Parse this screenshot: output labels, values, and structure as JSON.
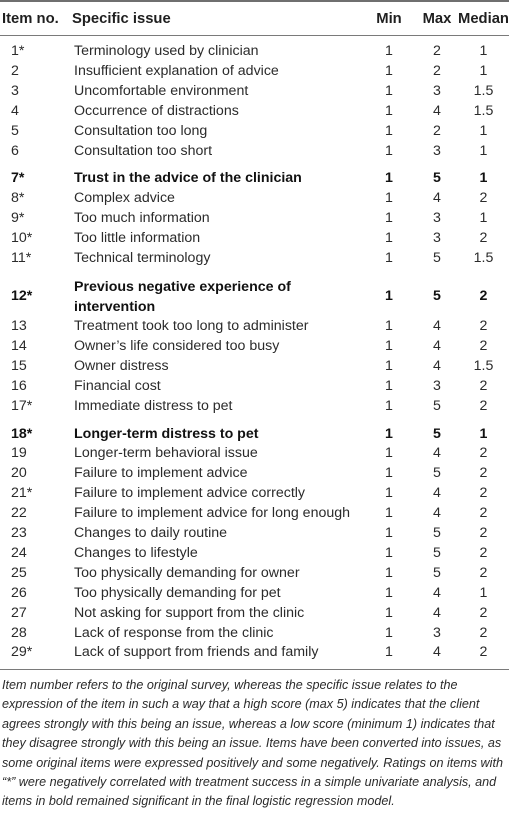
{
  "table": {
    "headers": {
      "item": "Item no.",
      "issue": "Specific issue",
      "min": "Min",
      "max": "Max",
      "median": "Median"
    },
    "rows": [
      {
        "item": "1*",
        "issue": "Terminology used by clinician",
        "min": "1",
        "max": "2",
        "median": "1",
        "bold": false
      },
      {
        "item": "2",
        "issue": "Insufficient explanation of advice",
        "min": "1",
        "max": "2",
        "median": "1",
        "bold": false
      },
      {
        "item": "3",
        "issue": "Uncomfortable environment",
        "min": "1",
        "max": "3",
        "median": "1.5",
        "bold": false
      },
      {
        "item": "4",
        "issue": "Occurrence of distractions",
        "min": "1",
        "max": "4",
        "median": "1.5",
        "bold": false
      },
      {
        "item": "5",
        "issue": "Consultation too long",
        "min": "1",
        "max": "2",
        "median": "1",
        "bold": false
      },
      {
        "item": "6",
        "issue": "Consultation too short",
        "min": "1",
        "max": "3",
        "median": "1",
        "bold": false
      },
      {
        "item": "7*",
        "issue": "Trust in the advice of the clinician",
        "min": "1",
        "max": "5",
        "median": "1",
        "bold": true
      },
      {
        "item": "8*",
        "issue": "Complex advice",
        "min": "1",
        "max": "4",
        "median": "2",
        "bold": false
      },
      {
        "item": "9*",
        "issue": "Too much information",
        "min": "1",
        "max": "3",
        "median": "1",
        "bold": false
      },
      {
        "item": "10*",
        "issue": "Too little information",
        "min": "1",
        "max": "3",
        "median": "2",
        "bold": false
      },
      {
        "item": "11*",
        "issue": "Technical terminology",
        "min": "1",
        "max": "5",
        "median": "1.5",
        "bold": false
      },
      {
        "item": "12*",
        "issue": "Previous negative experience of intervention",
        "min": "1",
        "max": "5",
        "median": "2",
        "bold": true
      },
      {
        "item": "13",
        "issue": "Treatment took too long to administer",
        "min": "1",
        "max": "4",
        "median": "2",
        "bold": false
      },
      {
        "item": "14",
        "issue": "Owner’s life considered too busy",
        "min": "1",
        "max": "4",
        "median": "2",
        "bold": false
      },
      {
        "item": "15",
        "issue": "Owner distress",
        "min": "1",
        "max": "4",
        "median": "1.5",
        "bold": false
      },
      {
        "item": "16",
        "issue": "Financial cost",
        "min": "1",
        "max": "3",
        "median": "2",
        "bold": false
      },
      {
        "item": "17*",
        "issue": "Immediate distress to pet",
        "min": "1",
        "max": "5",
        "median": "2",
        "bold": false
      },
      {
        "item": "18*",
        "issue": "Longer-term distress to pet",
        "min": "1",
        "max": "5",
        "median": "1",
        "bold": true
      },
      {
        "item": "19",
        "issue": "Longer-term behavioral issue",
        "min": "1",
        "max": "4",
        "median": "2",
        "bold": false
      },
      {
        "item": "20",
        "issue": "Failure to implement advice",
        "min": "1",
        "max": "5",
        "median": "2",
        "bold": false
      },
      {
        "item": "21*",
        "issue": "Failure to implement advice correctly",
        "min": "1",
        "max": "4",
        "median": "2",
        "bold": false
      },
      {
        "item": "22",
        "issue": "Failure to implement advice for long enough",
        "min": "1",
        "max": "4",
        "median": "2",
        "bold": false
      },
      {
        "item": "23",
        "issue": "Changes to daily routine",
        "min": "1",
        "max": "5",
        "median": "2",
        "bold": false
      },
      {
        "item": "24",
        "issue": "Changes to lifestyle",
        "min": "1",
        "max": "5",
        "median": "2",
        "bold": false
      },
      {
        "item": "25",
        "issue": "Too physically demanding for owner",
        "min": "1",
        "max": "5",
        "median": "2",
        "bold": false
      },
      {
        "item": "26",
        "issue": "Too physically demanding for pet",
        "min": "1",
        "max": "4",
        "median": "1",
        "bold": false
      },
      {
        "item": "27",
        "issue": "Not asking for support from the clinic",
        "min": "1",
        "max": "4",
        "median": "2",
        "bold": false
      },
      {
        "item": "28",
        "issue": "Lack of response from the clinic",
        "min": "1",
        "max": "3",
        "median": "2",
        "bold": false
      },
      {
        "item": "29*",
        "issue": "Lack of support from friends and family",
        "min": "1",
        "max": "4",
        "median": "2",
        "bold": false
      }
    ]
  },
  "footnote": "Item number refers to the original survey, whereas the specific issue relates to the expression of the item in such a way that a high score (max 5) indicates that the client agrees strongly with this being an issue, whereas a low score (minimum 1) indicates that they disagree strongly with this being an issue. Items have been converted into issues, as some original items were expressed positively and some negatively. Ratings on items with “*” were negatively correlated with treatment success in a simple univariate analysis, and items in bold remained significant in the final logistic regression model."
}
